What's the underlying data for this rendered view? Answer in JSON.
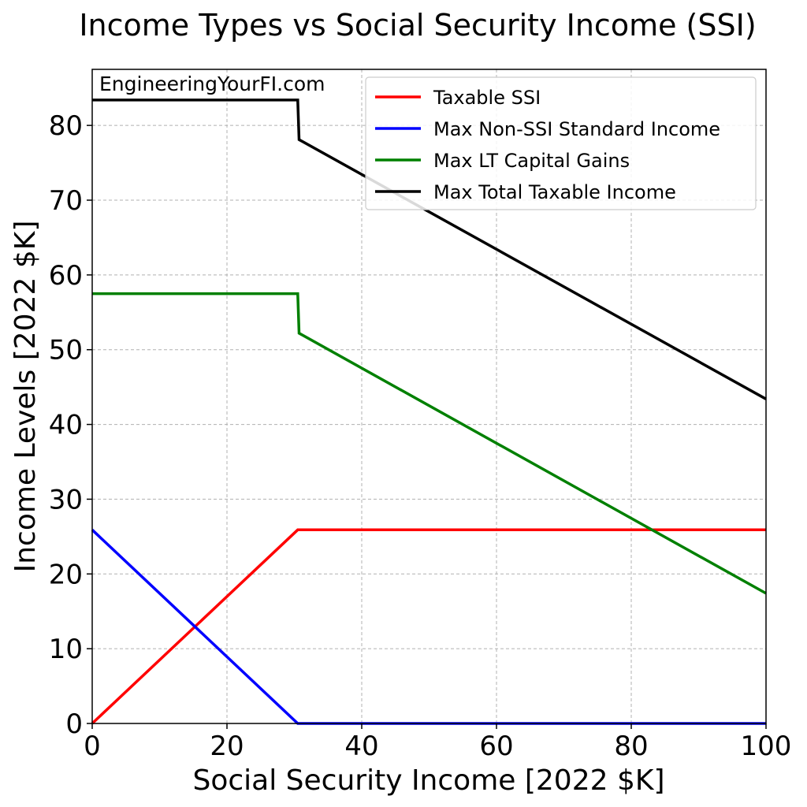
{
  "chart_data": {
    "type": "line",
    "title": "Income Types vs Social Security Income (SSI)",
    "watermark": "EngineeringYourFI.com",
    "xlabel": "Social Security Income [2022 $K]",
    "ylabel": "Income Levels [2022 $K]",
    "xlim": [
      0,
      100
    ],
    "ylim": [
      0,
      87.5
    ],
    "xticks": [
      0,
      20,
      40,
      60,
      80,
      100
    ],
    "yticks": [
      0,
      10,
      20,
      30,
      40,
      50,
      60,
      70,
      80
    ],
    "grid": true,
    "legend_position": "top-right",
    "series": [
      {
        "name": "Taxable SSI",
        "color": "#ff0000",
        "points": [
          [
            0,
            0
          ],
          [
            30.5,
            25.9
          ],
          [
            100,
            25.9
          ]
        ]
      },
      {
        "name": "Max Non-SSI Standard Income",
        "color": "#0000ff",
        "points": [
          [
            0,
            25.9
          ],
          [
            30.5,
            0
          ],
          [
            100,
            0
          ]
        ]
      },
      {
        "name": "Max LT Capital Gains",
        "color": "#008000",
        "points": [
          [
            0,
            57.5
          ],
          [
            30.5,
            57.5
          ],
          [
            30.7,
            52.2
          ],
          [
            100,
            17.4
          ]
        ]
      },
      {
        "name": "Max Total Taxable Income",
        "color": "#000000",
        "points": [
          [
            0,
            83.4
          ],
          [
            30.5,
            83.4
          ],
          [
            30.7,
            78.1
          ],
          [
            100,
            43.4
          ]
        ]
      }
    ]
  }
}
